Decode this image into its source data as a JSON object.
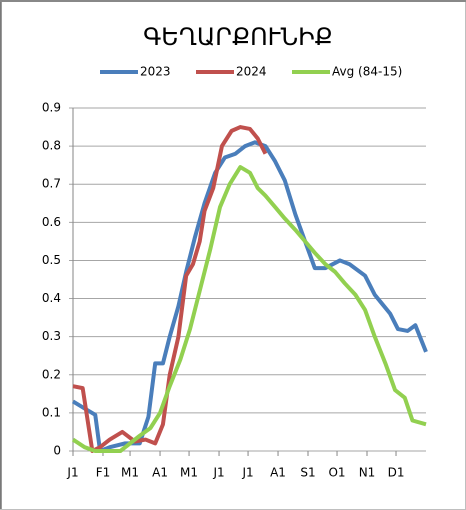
{
  "chart_data": {
    "type": "line",
    "title": "ԳԵՂԱՐՔՈՒՆԻՔ",
    "series": [
      {
        "name": "2023",
        "color": "#4a7ebb",
        "x": [
          0,
          13,
          23,
          28,
          38,
          54,
          69,
          78,
          85,
          93,
          100,
          109,
          117,
          126,
          136,
          147,
          157,
          168,
          178,
          188,
          199,
          209,
          219,
          230,
          240,
          250,
          261,
          276,
          286,
          302,
          312,
          328,
          336,
          346,
          354,
          365
        ],
        "values": [
          0.13,
          0.11,
          0.095,
          0.0,
          0.01,
          0.02,
          0.02,
          0.09,
          0.23,
          0.23,
          0.3,
          0.38,
          0.47,
          0.56,
          0.65,
          0.73,
          0.77,
          0.78,
          0.8,
          0.81,
          0.8,
          0.76,
          0.71,
          0.62,
          0.55,
          0.48,
          0.48,
          0.5,
          0.49,
          0.46,
          0.41,
          0.36,
          0.32,
          0.315,
          0.33,
          0.26
        ]
      },
      {
        "name": "2024",
        "color": "#c0504d",
        "x": [
          0,
          10,
          20,
          28,
          38,
          51,
          64,
          75,
          85,
          93,
          100,
          109,
          117,
          124,
          131,
          136,
          145,
          154,
          164,
          173,
          183,
          191,
          199
        ],
        "values": [
          0.17,
          0.165,
          0.0,
          0.01,
          0.03,
          0.05,
          0.025,
          0.03,
          0.02,
          0.07,
          0.2,
          0.3,
          0.46,
          0.49,
          0.55,
          0.63,
          0.69,
          0.8,
          0.84,
          0.85,
          0.845,
          0.82,
          0.78
        ]
      },
      {
        "name": "Avg (84-15)",
        "color": "#92d050",
        "x": [
          0,
          12,
          23,
          49,
          59,
          69,
          80,
          90,
          100,
          111,
          121,
          131,
          142,
          152,
          162,
          173,
          183,
          191,
          199,
          209,
          219,
          230,
          240,
          250,
          261,
          271,
          281,
          292,
          302,
          312,
          323,
          333,
          343,
          351,
          365
        ],
        "values": [
          0.03,
          0.01,
          0.0,
          0.0,
          0.02,
          0.04,
          0.06,
          0.1,
          0.17,
          0.24,
          0.32,
          0.42,
          0.53,
          0.64,
          0.7,
          0.745,
          0.73,
          0.69,
          0.67,
          0.64,
          0.61,
          0.58,
          0.55,
          0.52,
          0.49,
          0.47,
          0.44,
          0.41,
          0.37,
          0.3,
          0.23,
          0.16,
          0.14,
          0.08,
          0.07
        ]
      }
    ],
    "xlim": [
      0,
      365
    ],
    "xticks": [
      {
        "value": 0,
        "label": "J1"
      },
      {
        "value": 31,
        "label": "F1"
      },
      {
        "value": 59,
        "label": "M1"
      },
      {
        "value": 90,
        "label": "A1"
      },
      {
        "value": 120,
        "label": "M1"
      },
      {
        "value": 151,
        "label": "J1"
      },
      {
        "value": 181,
        "label": "J1"
      },
      {
        "value": 212,
        "label": "A1"
      },
      {
        "value": 243,
        "label": "S1"
      },
      {
        "value": 273,
        "label": "O1"
      },
      {
        "value": 304,
        "label": "N1"
      },
      {
        "value": 334,
        "label": "D1"
      }
    ],
    "ylim": [
      0,
      0.9
    ],
    "yticks": [
      0,
      0.1,
      0.2,
      0.3,
      0.4,
      0.5,
      0.6,
      0.7,
      0.8,
      0.9
    ],
    "grid": true,
    "legend": "top"
  }
}
